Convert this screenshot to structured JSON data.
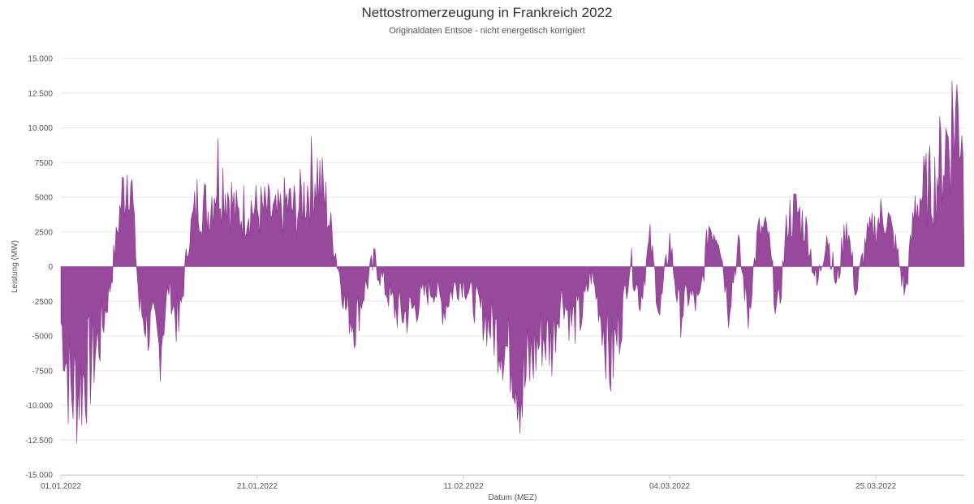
{
  "chart_data": {
    "type": "area",
    "title": "Nettostromerzeugung in Frankreich 2022",
    "subtitle": "Originaldaten Entsoe - nicht energetisch korrigiert",
    "xlabel": "Datum (MEZ)",
    "ylabel": "Leistung (MW)",
    "ylim": [
      -15000,
      15000
    ],
    "xlim": [
      "2022-01-01",
      "2022-04-03"
    ],
    "grid": true,
    "fill_color": "#8e3b94",
    "y_ticks": [
      {
        "value": 15000,
        "label": "15.000"
      },
      {
        "value": 12500,
        "label": "12.500"
      },
      {
        "value": 10000,
        "label": "10.000"
      },
      {
        "value": 7500,
        "label": "7500"
      },
      {
        "value": 5000,
        "label": "5000"
      },
      {
        "value": 2500,
        "label": "2500"
      },
      {
        "value": 0,
        "label": "0"
      },
      {
        "value": -2500,
        "label": "-2500"
      },
      {
        "value": -5000,
        "label": "-5000"
      },
      {
        "value": -7500,
        "label": "-7500"
      },
      {
        "value": -10000,
        "label": "-10.000"
      },
      {
        "value": -12500,
        "label": "-12.500"
      },
      {
        "value": -15000,
        "label": "-15.000"
      }
    ],
    "x_ticks": [
      {
        "value": "2022-01-01",
        "label": "01.01.2022"
      },
      {
        "value": "2022-01-21",
        "label": "21.01.2022"
      },
      {
        "value": "2022-02-11",
        "label": "11.02.2022"
      },
      {
        "value": "2022-03-04",
        "label": "04.03.2022"
      },
      {
        "value": "2022-03-25",
        "label": "25.03.2022"
      }
    ],
    "x": [
      "2022-01-01",
      "2022-01-02",
      "2022-01-03",
      "2022-01-04",
      "2022-01-05",
      "2022-01-06",
      "2022-01-07",
      "2022-01-08",
      "2022-01-09",
      "2022-01-10",
      "2022-01-11",
      "2022-01-12",
      "2022-01-13",
      "2022-01-14",
      "2022-01-15",
      "2022-01-16",
      "2022-01-17",
      "2022-01-18",
      "2022-01-19",
      "2022-01-20",
      "2022-01-21",
      "2022-01-22",
      "2022-01-23",
      "2022-01-24",
      "2022-01-25",
      "2022-01-26",
      "2022-01-27",
      "2022-01-28",
      "2022-01-29",
      "2022-01-30",
      "2022-01-31",
      "2022-02-01",
      "2022-02-02",
      "2022-02-03",
      "2022-02-04",
      "2022-02-05",
      "2022-02-06",
      "2022-02-07",
      "2022-02-08",
      "2022-02-09",
      "2022-02-10",
      "2022-02-11",
      "2022-02-12",
      "2022-02-13",
      "2022-02-14",
      "2022-02-15",
      "2022-02-16",
      "2022-02-17",
      "2022-02-18",
      "2022-02-19",
      "2022-02-20",
      "2022-02-21",
      "2022-02-22",
      "2022-02-23",
      "2022-02-24",
      "2022-02-25",
      "2022-02-26",
      "2022-02-27",
      "2022-02-28",
      "2022-03-01",
      "2022-03-02",
      "2022-03-03",
      "2022-03-04",
      "2022-03-05",
      "2022-03-06",
      "2022-03-07",
      "2022-03-08",
      "2022-03-09",
      "2022-03-10",
      "2022-03-11",
      "2022-03-12",
      "2022-03-13",
      "2022-03-14",
      "2022-03-15",
      "2022-03-16",
      "2022-03-17",
      "2022-03-18",
      "2022-03-19",
      "2022-03-20",
      "2022-03-21",
      "2022-03-22",
      "2022-03-23",
      "2022-03-24",
      "2022-03-25",
      "2022-03-26",
      "2022-03-27",
      "2022-03-28",
      "2022-03-29",
      "2022-03-30",
      "2022-03-31",
      "2022-04-01",
      "2022-04-02"
    ],
    "values": [
      -4000,
      -9000,
      -8500,
      -7000,
      -5000,
      -1500,
      4000,
      8000,
      -3000,
      -4500,
      -6000,
      -1500,
      -4500,
      2000,
      5000,
      4000,
      7000,
      5500,
      3500,
      4500,
      4000,
      4000,
      3500,
      4500,
      4000,
      5500,
      7000,
      4500,
      1000,
      -3000,
      -4000,
      -1500,
      500,
      -1500,
      -3000,
      -3500,
      -3000,
      -2000,
      -1500,
      -3000,
      -1500,
      -1000,
      -2500,
      -3500,
      -4500,
      -5500,
      -6500,
      -9000,
      -6500,
      -5000,
      -5500,
      -2000,
      -4000,
      -3500,
      -500,
      -3500,
      -7000,
      -4000,
      500,
      -2500,
      2000,
      -3500,
      2000,
      -3500,
      -2000,
      -3000,
      3000,
      2500,
      -3000,
      1500,
      -3500,
      2500,
      2500,
      -4000,
      3500,
      4000,
      2500,
      -1500,
      2500,
      -1500,
      3500,
      -2000,
      2000,
      3000,
      4000,
      1500,
      -2000,
      4500,
      5500,
      6000,
      8500,
      11000
    ]
  }
}
